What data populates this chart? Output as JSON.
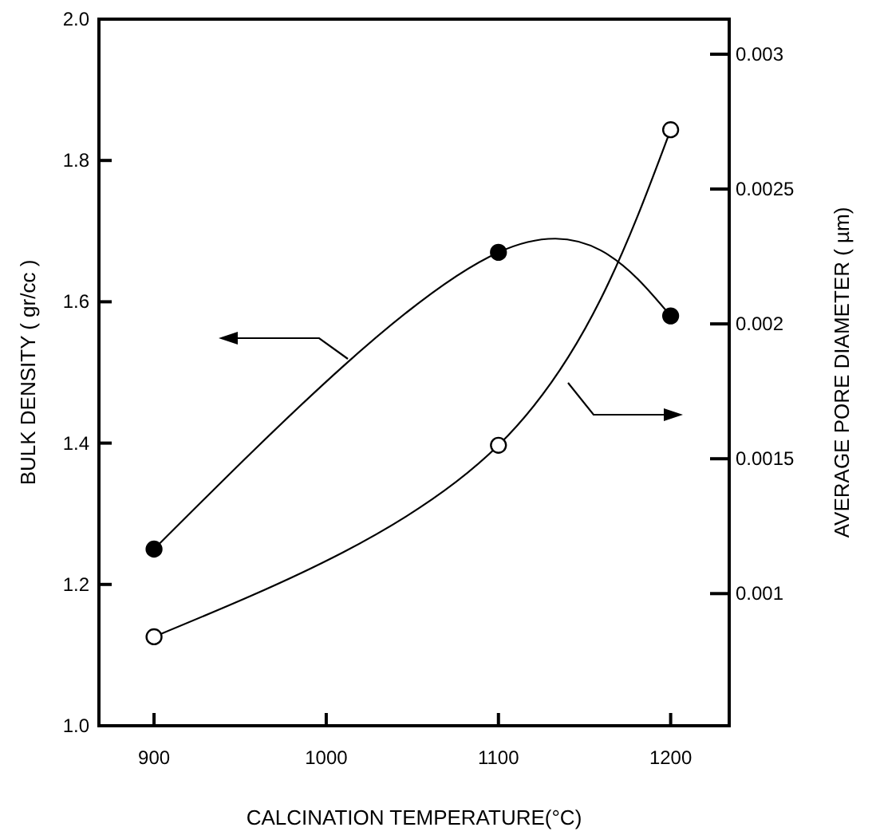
{
  "chart_data": {
    "type": "line",
    "xlabel": "CALCINATION TEMPERATURE(°C)",
    "ylabel": "BULK DENSITY ( gr/cc )",
    "y2label": "AVERAGE PORE DIAMETER ( µm)",
    "x": [
      900,
      1100,
      1200
    ],
    "series": [
      {
        "color": "#000000",
        "values": [
          1.25,
          1.67,
          1.58
        ]
      },
      {
        "color": "#000000",
        "values": [
          0.00084,
          0.00155,
          0.00272
        ],
        "axis": "y2"
      }
    ],
    "xlim": [
      868,
      1234
    ],
    "xticks": [
      900,
      1000,
      1100,
      1200
    ],
    "ylim": [
      1.0,
      2.0
    ],
    "yticks": [
      {
        "value": 1.0,
        "label": "1.0"
      },
      1.2,
      1.4,
      1.6,
      1.8,
      {
        "value": 2.0,
        "label": "2.0"
      }
    ],
    "y2lim": [
      0.00051,
      0.00313
    ],
    "y2ticks": [
      {
        "value": 0.001,
        "label": "0.001"
      },
      {
        "value": 0.0015,
        "label": "0.0015"
      },
      {
        "value": 0.002,
        "label": "0.002"
      },
      {
        "value": 0.0025,
        "label": "0.0025"
      },
      {
        "value": 0.003,
        "label": "0.003"
      }
    ],
    "marker": "circle",
    "line_style": "solid"
  }
}
